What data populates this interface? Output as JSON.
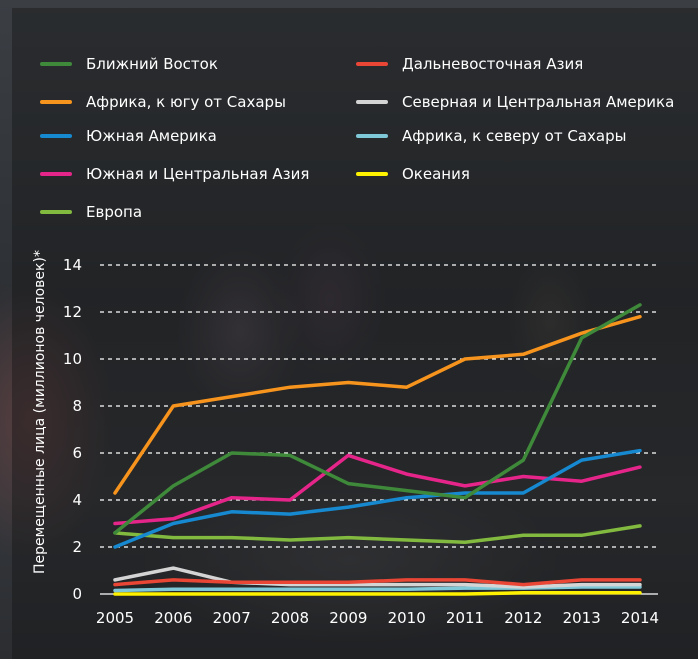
{
  "chart_data": {
    "type": "line",
    "ylabel": "Перемещенные лица (миллионов человек)*",
    "xlabel": "",
    "ylim": [
      0,
      14
    ],
    "yticks": [
      0,
      2,
      4,
      6,
      8,
      10,
      12,
      14
    ],
    "x": [
      "2005",
      "2006",
      "2007",
      "2008",
      "2009",
      "2010",
      "2011",
      "2012",
      "2013",
      "2014"
    ],
    "grid": "horizontal dashed",
    "legend_position": "top",
    "series": [
      {
        "name": "Ближний Восток",
        "color": "#3f8a3a",
        "values": [
          2.6,
          4.6,
          6.0,
          5.9,
          4.7,
          4.4,
          4.1,
          5.7,
          10.9,
          12.3
        ]
      },
      {
        "name": "Африка, к югу от Сахары",
        "color": "#f7941d",
        "values": [
          4.3,
          8.0,
          8.4,
          8.8,
          9.0,
          8.8,
          10.0,
          10.2,
          11.1,
          11.8
        ]
      },
      {
        "name": "Южная Америка",
        "color": "#1689d0",
        "values": [
          2.0,
          3.0,
          3.5,
          3.4,
          3.7,
          4.1,
          4.3,
          4.3,
          5.7,
          6.1
        ]
      },
      {
        "name": "Южная и Центральная Азия",
        "color": "#e6258a",
        "values": [
          3.0,
          3.2,
          4.1,
          4.0,
          5.9,
          5.1,
          4.6,
          5.0,
          4.8,
          5.4
        ]
      },
      {
        "name": "Европа",
        "color": "#82b93f",
        "values": [
          2.6,
          2.4,
          2.4,
          2.3,
          2.4,
          2.3,
          2.2,
          2.5,
          2.5,
          2.9
        ]
      },
      {
        "name": "Дальневосточная Азия",
        "color": "#e94635",
        "values": [
          0.4,
          0.6,
          0.5,
          0.5,
          0.5,
          0.6,
          0.6,
          0.4,
          0.6,
          0.6
        ]
      },
      {
        "name": "Северная и Центральная Америка",
        "color": "#d4d4d4",
        "values": [
          0.6,
          1.1,
          0.5,
          0.4,
          0.4,
          0.4,
          0.4,
          0.3,
          0.4,
          0.4
        ]
      },
      {
        "name": "Африка, к северу от Сахары",
        "color": "#7fc8d8",
        "values": [
          0.15,
          0.2,
          0.2,
          0.2,
          0.2,
          0.2,
          0.25,
          0.25,
          0.3,
          0.3
        ]
      },
      {
        "name": "Океания",
        "color": "#fff200",
        "values": [
          0.0,
          0.0,
          0.0,
          0.0,
          0.0,
          0.0,
          0.0,
          0.05,
          0.05,
          0.05
        ]
      }
    ]
  }
}
